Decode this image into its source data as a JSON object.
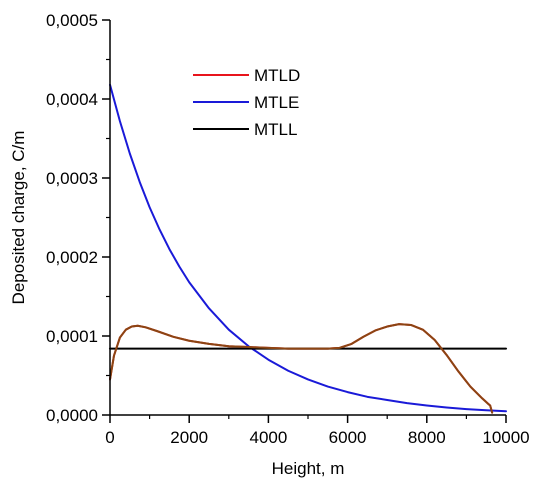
{
  "chart_data": {
    "type": "line",
    "title": "",
    "xlabel": "Height, m",
    "ylabel": "Deposited charge, C/m",
    "xlim": [
      0,
      10000
    ],
    "ylim": [
      0,
      0.0005
    ],
    "x_ticks": [
      {
        "value": 0,
        "label": "0"
      },
      {
        "value": 2000,
        "label": "2000"
      },
      {
        "value": 4000,
        "label": "4000"
      },
      {
        "value": 6000,
        "label": "6000"
      },
      {
        "value": 8000,
        "label": "8000"
      },
      {
        "value": 10000,
        "label": "10000"
      }
    ],
    "y_ticks": [
      {
        "value": 0,
        "label": "0,0000"
      },
      {
        "value": 0.0001,
        "label": "0,0001"
      },
      {
        "value": 0.0002,
        "label": "0,0002"
      },
      {
        "value": 0.0003,
        "label": "0,0003"
      },
      {
        "value": 0.0004,
        "label": "0,0004"
      },
      {
        "value": 0.0005,
        "label": "0,0005"
      }
    ],
    "grid": false,
    "legend_position": "top-center",
    "series": [
      {
        "name": "MTLD",
        "color": "#e8141c",
        "x": [
          0,
          100,
          250,
          400,
          550,
          700,
          900,
          1200,
          1600,
          2000,
          2500,
          3000,
          3500,
          4000,
          4500,
          5000,
          5500,
          5800,
          6100,
          6400,
          6700,
          7000,
          7300,
          7600,
          7900,
          8200,
          8500,
          8800,
          9100,
          9400,
          9600,
          9650
        ],
        "y": [
          4.5e-05,
          7.5e-05,
          9.8e-05,
          0.000108,
          0.000112,
          0.000113,
          0.000111,
          0.000106,
          9.9e-05,
          9.4e-05,
          9e-05,
          8.7e-05,
          8.6e-05,
          8.5e-05,
          8.4e-05,
          8.4e-05,
          8.4e-05,
          8.5e-05,
          9e-05,
          9.9e-05,
          0.000107,
          0.000112,
          0.000115,
          0.000114,
          0.000108,
          9.5e-05,
          7.6e-05,
          5.5e-05,
          3.6e-05,
          2.1e-05,
          1.2e-05,
          3e-06
        ]
      },
      {
        "name": "MTLE",
        "color": "#1a1ad8",
        "x": [
          0,
          250,
          500,
          750,
          1000,
          1250,
          1500,
          1750,
          2000,
          2500,
          3000,
          3500,
          4000,
          4500,
          5000,
          5500,
          6000,
          6500,
          7000,
          7500,
          8000,
          8500,
          9000,
          9500,
          10000
        ],
        "y": [
          0.000418,
          0.000372,
          0.000331,
          0.000295,
          0.000263,
          0.000235,
          0.00021,
          0.000188,
          0.000168,
          0.000135,
          0.000108,
          8.7e-05,
          7e-05,
          5.6e-05,
          4.5e-05,
          3.6e-05,
          2.9e-05,
          2.3e-05,
          1.9e-05,
          1.5e-05,
          1.2e-05,
          9.5e-06,
          7.5e-06,
          6e-06,
          4.8e-06
        ]
      },
      {
        "name": "MTLL",
        "color": "#000000",
        "x": [
          0,
          10000
        ],
        "y": [
          8.4e-05,
          8.4e-05
        ]
      },
      {
        "name": "",
        "color": "#8b4513",
        "x": [
          0,
          100,
          250,
          400,
          550,
          700,
          900,
          1200,
          1600,
          2000,
          2500,
          3000,
          3500,
          4000,
          4500,
          5000,
          5500,
          5800,
          6100,
          6400,
          6700,
          7000,
          7300,
          7600,
          7900,
          8200,
          8500,
          8800,
          9100,
          9400,
          9550,
          9600,
          9650
        ],
        "y": [
          4.5e-05,
          7.5e-05,
          9.8e-05,
          0.000108,
          0.000112,
          0.000113,
          0.000111,
          0.000106,
          9.9e-05,
          9.4e-05,
          9e-05,
          8.7e-05,
          8.6e-05,
          8.5e-05,
          8.4e-05,
          8.4e-05,
          8.4e-05,
          8.5e-05,
          9e-05,
          9.9e-05,
          0.000107,
          0.000112,
          0.000115,
          0.000114,
          0.000108,
          9.5e-05,
          7.6e-05,
          5.5e-05,
          3.6e-05,
          2.1e-05,
          1.4e-05,
          1.2e-05,
          3e-06
        ]
      }
    ],
    "legend": [
      {
        "label": "MTLD",
        "color": "#e8141c"
      },
      {
        "label": "MTLE",
        "color": "#1a1ad8"
      },
      {
        "label": "MTLL",
        "color": "#000000"
      }
    ]
  }
}
